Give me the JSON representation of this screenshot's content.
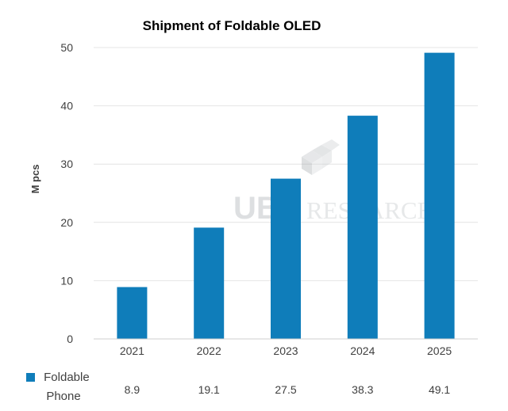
{
  "watermark": {
    "text_1": "UBI",
    "text_2": "RESEARCH"
  },
  "chart_data": {
    "type": "bar",
    "title": "Shipment of Foldable OLED",
    "xlabel": "",
    "ylabel": "M pcs",
    "categories": [
      "2021",
      "2022",
      "2023",
      "2024",
      "2025"
    ],
    "series": [
      {
        "name": "Foldable Phone",
        "legend_lines": [
          "Foldable",
          "Phone"
        ],
        "values": [
          8.9,
          19.1,
          27.5,
          38.3,
          49.1
        ],
        "value_labels": [
          "8.9",
          "19.1",
          "27.5",
          "38.3",
          "49.1"
        ],
        "color": "#0f7dba"
      }
    ],
    "ylim": [
      0,
      50
    ],
    "yticks": [
      0,
      10,
      20,
      30,
      40,
      50
    ],
    "grid": true,
    "legend_position": "bottom-left data table"
  }
}
